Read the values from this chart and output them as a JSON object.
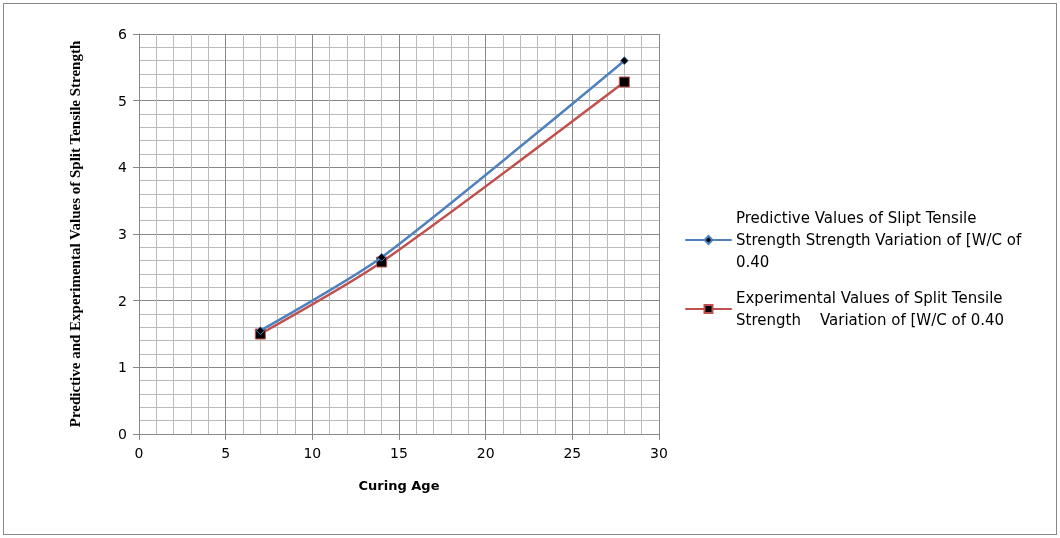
{
  "chart_data": {
    "type": "line",
    "xlabel": "Curing Age",
    "ylabel": "Predictive and Experimental Values of Split Tensile Strength",
    "x": [
      7,
      14,
      28
    ],
    "series": [
      {
        "name": "Predictive Values of Slipt Tensile Strength Strength Variation of [W/C of 0.40",
        "color": "#4f81bd",
        "marker": "diamond",
        "values": [
          1.55,
          2.65,
          5.6
        ]
      },
      {
        "name": "Experimental Values of Split Tensile   Strength    Variation of [W/C of 0.40",
        "color": "#c0504d",
        "marker": "square",
        "values": [
          1.5,
          2.58,
          5.28
        ]
      }
    ],
    "xlim": [
      0,
      30
    ],
    "xticks": [
      0,
      5,
      10,
      15,
      20,
      25,
      30
    ],
    "ylim": [
      0,
      6
    ],
    "yticks": [
      0,
      1,
      2,
      3,
      4,
      5,
      6
    ],
    "grid": true,
    "legend": "right",
    "line_style": "solid"
  }
}
